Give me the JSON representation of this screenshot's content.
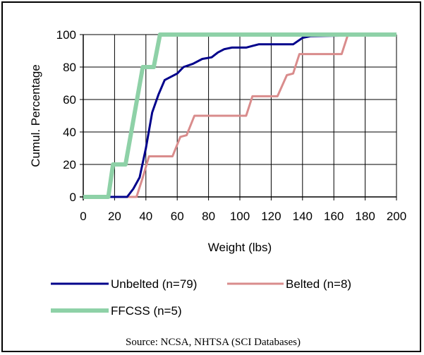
{
  "chart_data": {
    "type": "line",
    "xlabel": "Weight (lbs)",
    "ylabel": "Cumul. Percentage",
    "xlim": [
      0,
      200
    ],
    "ylim": [
      0,
      100
    ],
    "x_ticks": [
      0,
      20,
      40,
      60,
      80,
      100,
      120,
      140,
      160,
      180,
      200
    ],
    "y_ticks": [
      0,
      20,
      40,
      60,
      80,
      100
    ],
    "grid": true,
    "legend_position": "bottom",
    "series": [
      {
        "name": "Unbelted (n=79)",
        "color": "#00008B",
        "points": [
          [
            0,
            0
          ],
          [
            28,
            0
          ],
          [
            32,
            5
          ],
          [
            36,
            12
          ],
          [
            40,
            30
          ],
          [
            44,
            52
          ],
          [
            48,
            63
          ],
          [
            52,
            72
          ],
          [
            56,
            74
          ],
          [
            60,
            76
          ],
          [
            64,
            80
          ],
          [
            70,
            82
          ],
          [
            76,
            85
          ],
          [
            82,
            86
          ],
          [
            86,
            89
          ],
          [
            90,
            91
          ],
          [
            95,
            92
          ],
          [
            104,
            92
          ],
          [
            108,
            93
          ],
          [
            112,
            94
          ],
          [
            134,
            94
          ],
          [
            140,
            98
          ],
          [
            145,
            99
          ],
          [
            200,
            100
          ]
        ]
      },
      {
        "name": "Belted (n=8)",
        "color": "#D98C8C",
        "points": [
          [
            0,
            0
          ],
          [
            34,
            0
          ],
          [
            38,
            12
          ],
          [
            42,
            25
          ],
          [
            57,
            25
          ],
          [
            62,
            37
          ],
          [
            66,
            38
          ],
          [
            71,
            50
          ],
          [
            104,
            50
          ],
          [
            108,
            62
          ],
          [
            124,
            62
          ],
          [
            130,
            75
          ],
          [
            134,
            76
          ],
          [
            138,
            88
          ],
          [
            165,
            88
          ],
          [
            169,
            100
          ],
          [
            200,
            100
          ]
        ]
      },
      {
        "name": "FFCSS (n=5)",
        "color": "#8ED1A7",
        "points": [
          [
            0,
            0
          ],
          [
            16,
            0
          ],
          [
            19,
            20
          ],
          [
            23,
            20
          ],
          [
            27,
            20
          ],
          [
            38,
            80
          ],
          [
            42,
            80
          ],
          [
            45,
            80
          ],
          [
            49,
            100
          ],
          [
            200,
            100
          ]
        ]
      }
    ]
  },
  "source": "Source:  NCSA, NHTSA (SCI Databases)"
}
